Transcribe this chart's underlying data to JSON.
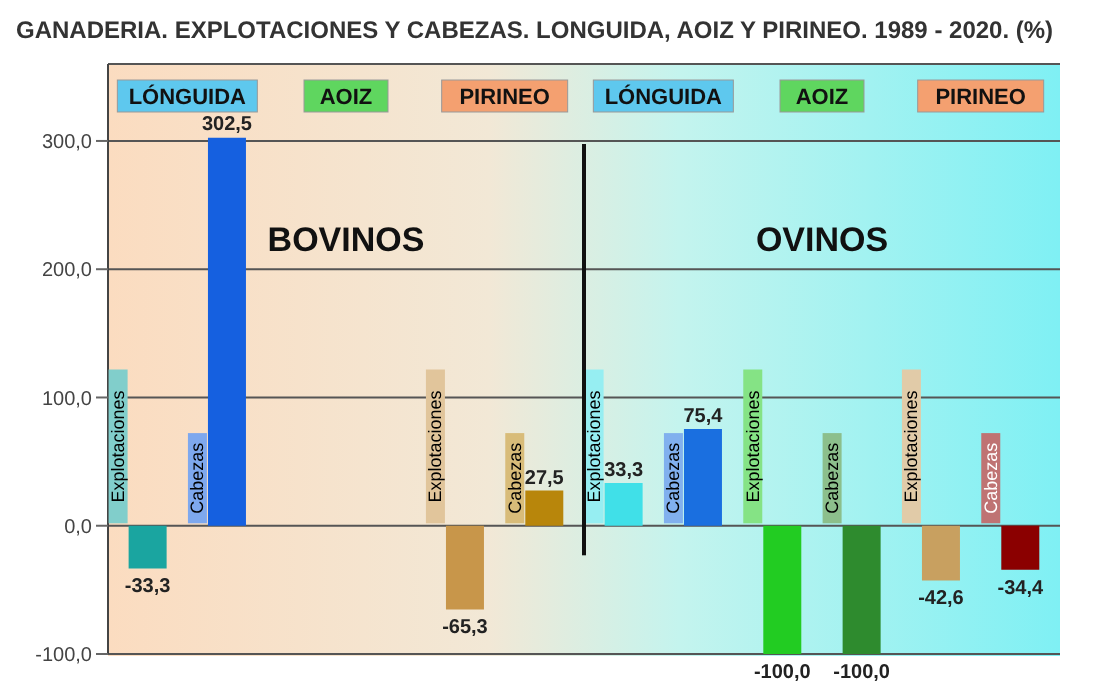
{
  "chart_data": {
    "type": "bar",
    "title": "GANADERIA. EXPLOTACIONES Y CABEZAS. LONGUIDA, AOIZ Y PIRINEO. 1989 - 2020. (%)",
    "categories": [
      "Explotaciones",
      "Cabezas",
      null,
      null,
      "Explotaciones",
      "Cabezas",
      "Explotaciones",
      "Cabezas",
      "Explotaciones",
      "Cabezas",
      "Explotaciones",
      "Cabezas"
    ],
    "values": [
      -33.3,
      302.5,
      0,
      0,
      -65.3,
      27.5,
      33.3,
      75.4,
      -100,
      -100,
      -42.6,
      -34.4
    ],
    "colors": [
      "#1aa5a0",
      "#1560e0",
      "#c0602a",
      "#3060c0",
      "#c8964a",
      "#b8860b",
      "#40e0e8",
      "#1a6fe0",
      "#22cc22",
      "#2e8b2e",
      "#c8a060",
      "#8b0000"
    ],
    "value_labels": [
      "-33,3",
      "302,5",
      null,
      null,
      "-65,3",
      "27,5",
      "33,3",
      "75,4",
      "-100,0",
      "-100,0",
      "-42,6",
      "-34,4"
    ],
    "ylim": [
      -100,
      360
    ],
    "yticks": [
      {
        "value": -100,
        "label": "-100,0"
      },
      {
        "value": 0,
        "label": "0,0"
      },
      {
        "value": 100,
        "label": "100,0"
      },
      {
        "value": 200,
        "label": "200,0"
      },
      {
        "value": 300,
        "label": "300,0"
      }
    ],
    "grid": "y",
    "annotations": [
      "LÓNGUIDA",
      "AOIZ",
      "PIRINEO",
      "LÓNGUIDA",
      "AOIZ",
      "PIRINEO",
      "BOVINOS",
      "OVINOS"
    ]
  }
}
